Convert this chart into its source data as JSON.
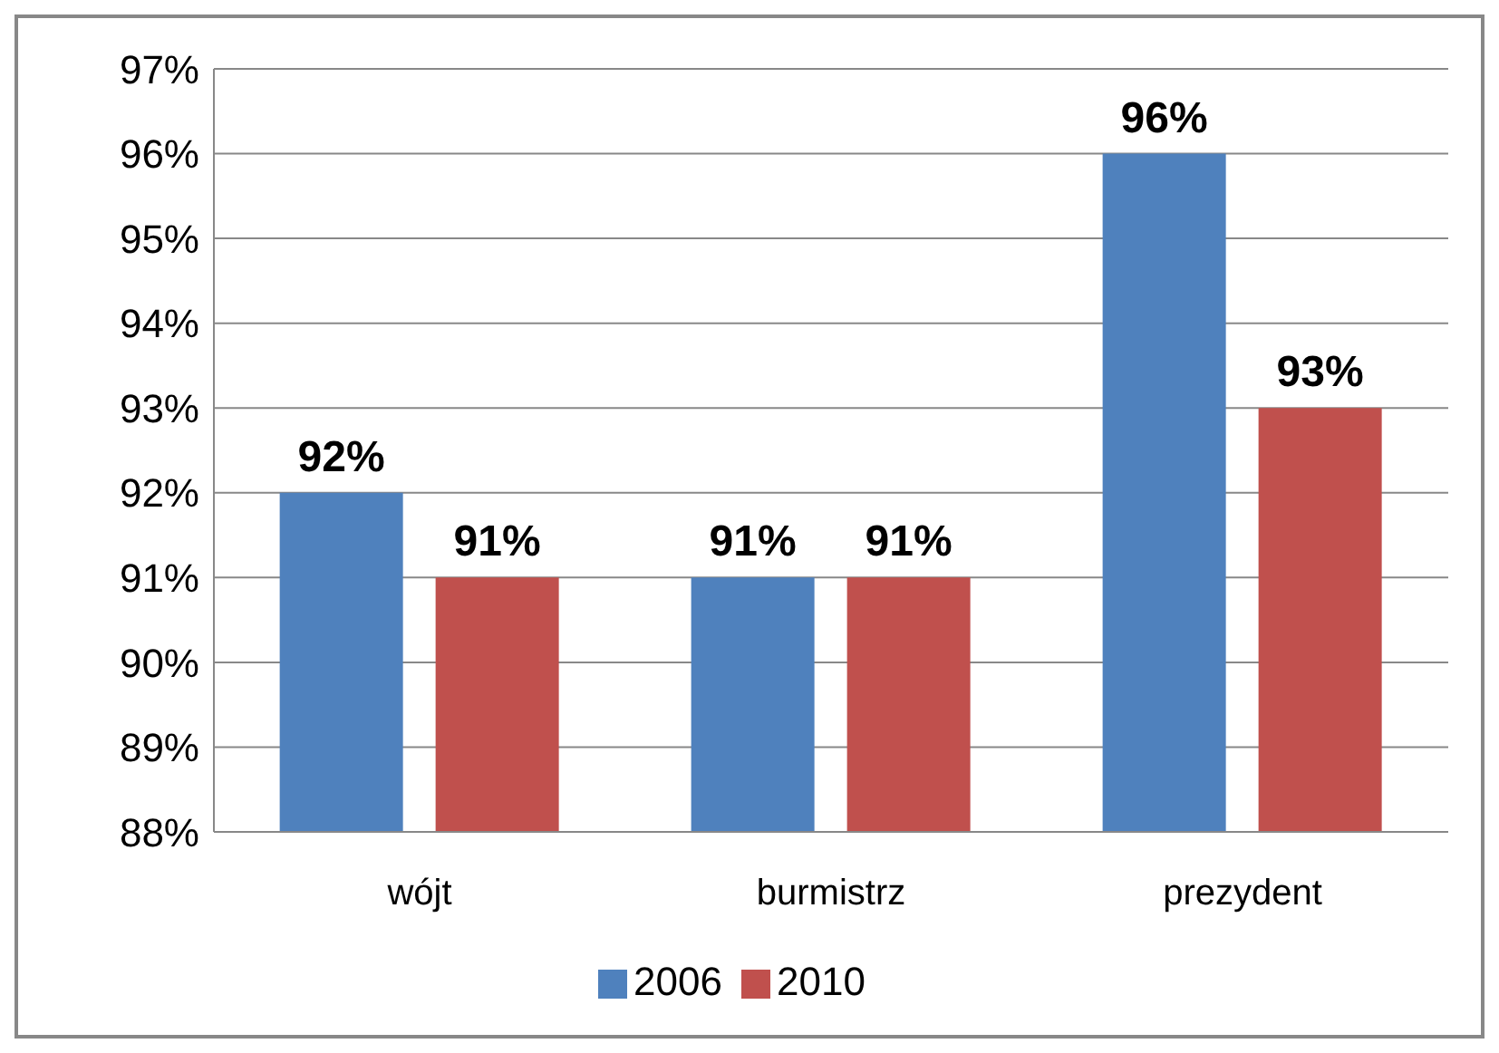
{
  "chart_data": {
    "type": "bar",
    "categories": [
      "wójt",
      "burmistrz",
      "prezydent"
    ],
    "series": [
      {
        "name": "2006",
        "color": "#4f81bd",
        "values": [
          92,
          91,
          96
        ],
        "value_labels": [
          "92%",
          "91%",
          "96%"
        ]
      },
      {
        "name": "2010",
        "color": "#c0504d",
        "values": [
          91,
          91,
          93
        ],
        "value_labels": [
          "91%",
          "91%",
          "93%"
        ]
      }
    ],
    "ylim": [
      88,
      97
    ],
    "yticks": [
      {
        "value": 88,
        "label": "88%"
      },
      {
        "value": 89,
        "label": "89%"
      },
      {
        "value": 90,
        "label": "90%"
      },
      {
        "value": 91,
        "label": "91%"
      },
      {
        "value": 92,
        "label": "92%"
      },
      {
        "value": 93,
        "label": "93%"
      },
      {
        "value": 94,
        "label": "94%"
      },
      {
        "value": 95,
        "label": "95%"
      },
      {
        "value": 96,
        "label": "96%"
      },
      {
        "value": 97,
        "label": "97%"
      }
    ],
    "grid": "y",
    "legend": "bottom"
  }
}
